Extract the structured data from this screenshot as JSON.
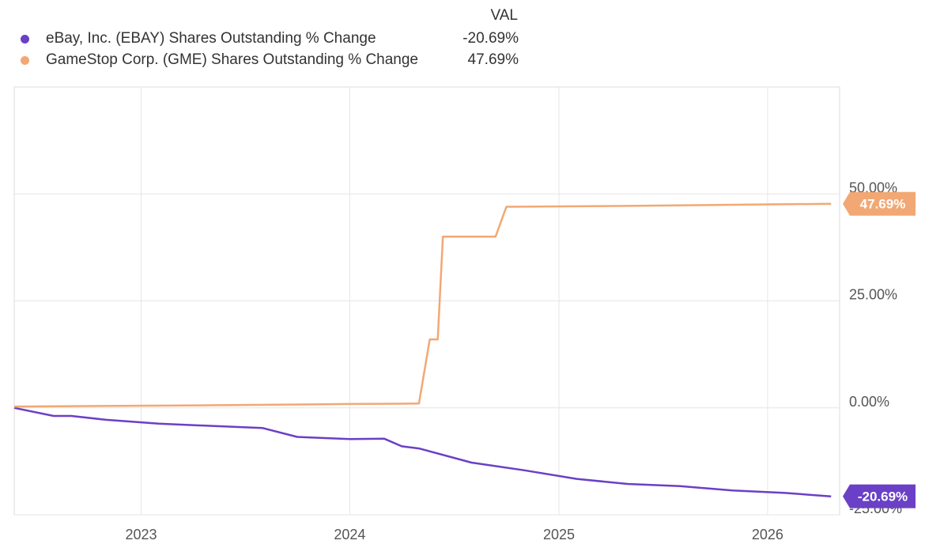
{
  "legend": {
    "header": "VAL",
    "items": [
      {
        "name": "eBay, Inc. (EBAY) Shares Outstanding % Change",
        "value": "-20.69%",
        "color": "#6a40c6"
      },
      {
        "name": "GameStop Corp. (GME) Shares Outstanding % Change",
        "value": "47.69%",
        "color": "#f2a874"
      }
    ]
  },
  "chart_data": {
    "type": "line",
    "title": "",
    "xlabel": "",
    "ylabel": "",
    "xlim": [
      "2022-05-24",
      "2026-05-07"
    ],
    "ylim": [
      -25,
      75
    ],
    "x_ticks": [
      "2023",
      "2024",
      "2025",
      "2026"
    ],
    "y_ticks": [
      "50.00%",
      "25.00%",
      "0.00%",
      "-25.00%"
    ],
    "grid": true,
    "legend_position": "top-left",
    "series": [
      {
        "name": "eBay, Inc. (EBAY) Shares Outstanding % Change",
        "color": "#6a40c6",
        "end_label": "-20.69%",
        "points": [
          [
            "2022-05-24",
            0.0
          ],
          [
            "2022-08-01",
            -1.9
          ],
          [
            "2022-09-01",
            -1.9
          ],
          [
            "2022-11-01",
            -2.8
          ],
          [
            "2023-02-01",
            -3.7
          ],
          [
            "2023-05-01",
            -4.2
          ],
          [
            "2023-08-01",
            -4.7
          ],
          [
            "2023-10-01",
            -6.8
          ],
          [
            "2024-01-01",
            -7.3
          ],
          [
            "2024-03-01",
            -7.2
          ],
          [
            "2024-04-01",
            -9.0
          ],
          [
            "2024-05-01",
            -9.5
          ],
          [
            "2024-08-01",
            -12.8
          ],
          [
            "2024-11-01",
            -14.6
          ],
          [
            "2025-02-01",
            -16.6
          ],
          [
            "2025-05-01",
            -17.8
          ],
          [
            "2025-08-01",
            -18.3
          ],
          [
            "2025-11-01",
            -19.3
          ],
          [
            "2026-02-01",
            -19.9
          ],
          [
            "2026-04-22",
            -20.69
          ]
        ]
      },
      {
        "name": "GameStop Corp. (GME) Shares Outstanding % Change",
        "color": "#f2a874",
        "end_label": "47.69%",
        "points": [
          [
            "2022-05-24",
            0.3
          ],
          [
            "2023-05-01",
            0.6
          ],
          [
            "2024-01-01",
            0.9
          ],
          [
            "2024-05-01",
            1.0
          ],
          [
            "2024-05-20",
            16.0
          ],
          [
            "2024-06-03",
            16.0
          ],
          [
            "2024-06-12",
            40.0
          ],
          [
            "2024-09-12",
            40.0
          ],
          [
            "2024-10-01",
            47.0
          ],
          [
            "2025-05-01",
            47.2
          ],
          [
            "2026-04-22",
            47.69
          ]
        ]
      }
    ]
  }
}
